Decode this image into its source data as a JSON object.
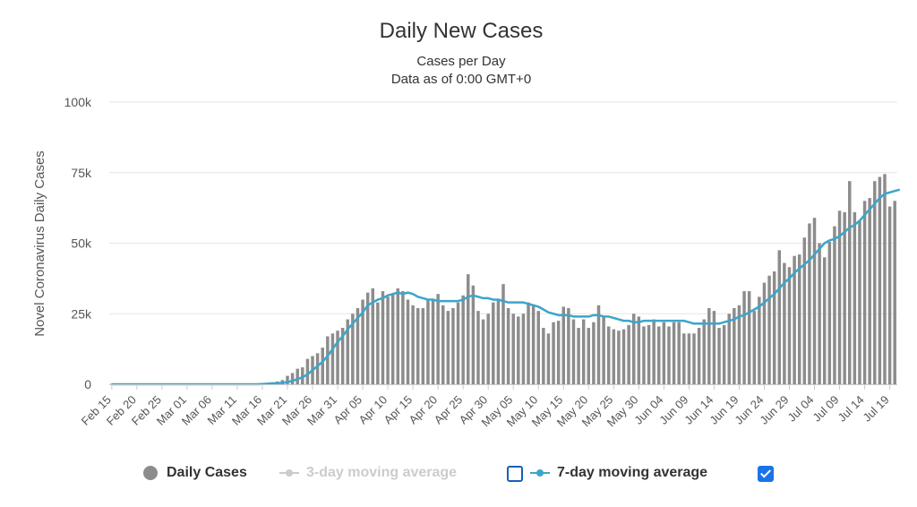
{
  "chart_data": {
    "type": "bar",
    "title": "Daily New Cases",
    "subtitle_lines": [
      "Cases per Day",
      "Data as of 0:00 GMT+0"
    ],
    "ylabel": "Novel Coronavirus Daily Cases",
    "ylim": [
      0,
      100000
    ],
    "y_ticks": [
      0,
      25000,
      50000,
      75000,
      100000
    ],
    "y_tick_labels": [
      "0",
      "25k",
      "50k",
      "75k",
      "100k"
    ],
    "x_tick_labels": [
      "Feb 15",
      "Feb 20",
      "Feb 25",
      "Mar 01",
      "Mar 06",
      "Mar 11",
      "Mar 16",
      "Mar 21",
      "Mar 26",
      "Mar 31",
      "Apr 05",
      "Apr 10",
      "Apr 15",
      "Apr 20",
      "Apr 25",
      "Apr 30",
      "May 05",
      "May 10",
      "May 15",
      "May 20",
      "May 25",
      "May 30",
      "Jun 04",
      "Jun 09",
      "Jun 14",
      "Jun 19",
      "Jun 24",
      "Jun 29",
      "Jul 04",
      "Jul 09",
      "Jul 14",
      "Jul 19"
    ],
    "x_start": "Feb 15",
    "x_end": "Jul 20",
    "grid": true,
    "legend_position": "bottom-center",
    "series": [
      {
        "name": "Daily Cases",
        "kind": "bar",
        "color": "#8c8c8c",
        "visible": true,
        "values": [
          0,
          0,
          0,
          0,
          0,
          0,
          0,
          0,
          0,
          0,
          0,
          0,
          0,
          0,
          0,
          0,
          0,
          0,
          0,
          0,
          0,
          0,
          0,
          0,
          0,
          0,
          0,
          100,
          200,
          300,
          400,
          500,
          700,
          1000,
          1500,
          3000,
          4000,
          5500,
          6000,
          9000,
          10000,
          11000,
          13000,
          17000,
          18000,
          19000,
          20000,
          23000,
          25000,
          27000,
          30000,
          32500,
          34000,
          29000,
          33000,
          31000,
          32000,
          34000,
          33000,
          30000,
          28000,
          27000,
          27000,
          30000,
          30000,
          32000,
          28000,
          26000,
          27000,
          29000,
          31500,
          39000,
          35000,
          26000,
          23000,
          25000,
          29000,
          30000,
          35500,
          27000,
          25000,
          24000,
          25000,
          29000,
          28000,
          26000,
          20000,
          18000,
          22000,
          22500,
          27500,
          27000,
          23000,
          20000,
          23000,
          20000,
          22000,
          28000,
          24000,
          20500,
          19500,
          19000,
          19500,
          21000,
          25000,
          24000,
          20500,
          21000,
          23000,
          20500,
          22000,
          20500,
          22000,
          22000,
          18000,
          18000,
          18000,
          20000,
          23000,
          27000,
          26000,
          20000,
          21000,
          25000,
          27000,
          28000,
          33000,
          33000,
          26000,
          31000,
          36000,
          38500,
          40000,
          47500,
          43000,
          41500,
          45500,
          46000,
          52000,
          57000,
          59000,
          50000,
          45000,
          50500,
          56000,
          61500,
          61000,
          72000,
          61000,
          58000,
          65000,
          66000,
          72000,
          73500,
          74500,
          63000,
          65000
        ]
      },
      {
        "name": "3-day moving average",
        "kind": "line",
        "color": "#cccccc",
        "visible": false
      },
      {
        "name": "7-day moving average",
        "kind": "line",
        "color": "#3ba5cb",
        "visible": true,
        "values": [
          0,
          0,
          0,
          0,
          0,
          0,
          0,
          0,
          0,
          0,
          0,
          0,
          0,
          0,
          0,
          0,
          0,
          0,
          0,
          0,
          0,
          0,
          0,
          0,
          0,
          0,
          0,
          0,
          0,
          0,
          100,
          200,
          300,
          400,
          500,
          800,
          1200,
          1800,
          2500,
          3500,
          5000,
          6500,
          8000,
          10000,
          12500,
          15000,
          17000,
          19500,
          21500,
          23500,
          25500,
          28000,
          29000,
          30000,
          30500,
          31500,
          32000,
          32500,
          32000,
          32500,
          32000,
          31000,
          30500,
          30000,
          30000,
          29500,
          29500,
          29500,
          29500,
          29500,
          30000,
          31000,
          31500,
          31000,
          30500,
          30500,
          30000,
          30000,
          29500,
          29000,
          29000,
          29000,
          29000,
          28500,
          28000,
          27500,
          26500,
          25500,
          25000,
          24500,
          24500,
          24500,
          24000,
          24000,
          24000,
          24000,
          24500,
          24500,
          24000,
          24000,
          23500,
          23000,
          22500,
          22500,
          22000,
          22000,
          22500,
          22500,
          22500,
          22500,
          22500,
          22500,
          22500,
          22500,
          22500,
          22000,
          21500,
          21500,
          21500,
          21500,
          21500,
          21500,
          22000,
          22500,
          23000,
          24000,
          24500,
          25500,
          26500,
          27500,
          29000,
          30500,
          32000,
          34000,
          36000,
          37500,
          39500,
          41000,
          42500,
          44000,
          46000,
          48000,
          50000,
          51000,
          51500,
          52500,
          54000,
          55500,
          56500,
          58000,
          60000,
          62000,
          64000,
          66000,
          67500,
          68000,
          68500,
          69000
        ]
      }
    ]
  },
  "legend": {
    "items": [
      {
        "label": "Daily Cases"
      },
      {
        "label": "3-day moving average"
      },
      {
        "label": "7-day moving average"
      }
    ]
  },
  "colors": {
    "bar": "#8c8c8c",
    "line": "#3ba5cb",
    "grid": "#e6e6e6",
    "checkbox": "#1a73e8"
  }
}
